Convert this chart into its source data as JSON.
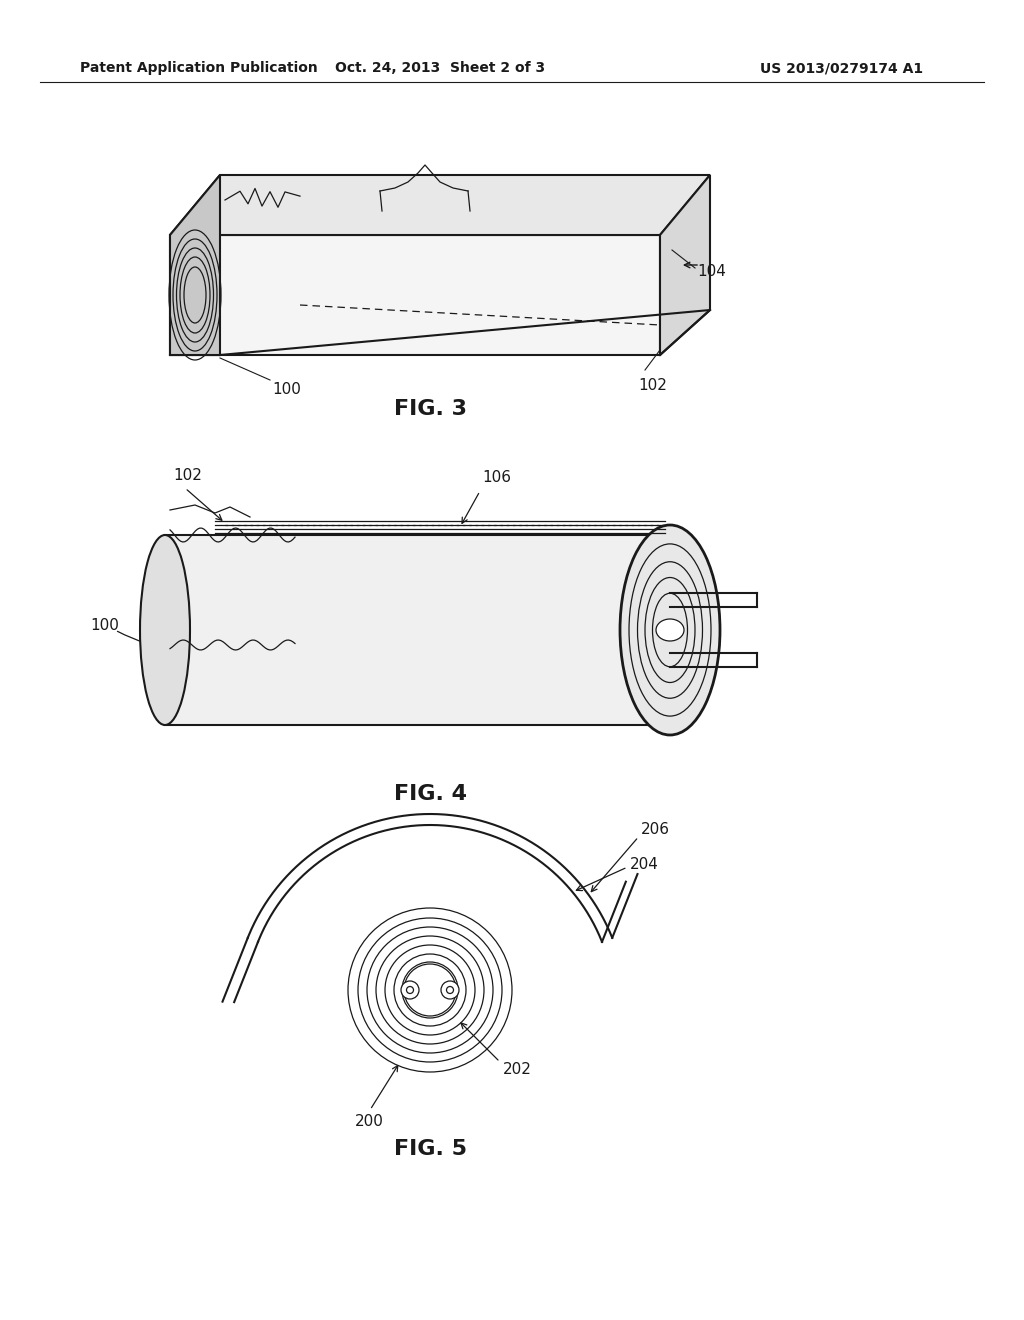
{
  "background_color": "#ffffff",
  "header_left": "Patent Application Publication",
  "header_center": "Oct. 24, 2013  Sheet 2 of 3",
  "header_right": "US 2013/0279174 A1",
  "fig3_label": "FIG. 3",
  "fig4_label": "FIG. 4",
  "fig5_label": "FIG. 5",
  "line_color": "#1a1a1a",
  "text_color": "#1a1a1a",
  "header_fontsize": 10,
  "label_fontsize": 14,
  "ref_fontsize": 11
}
